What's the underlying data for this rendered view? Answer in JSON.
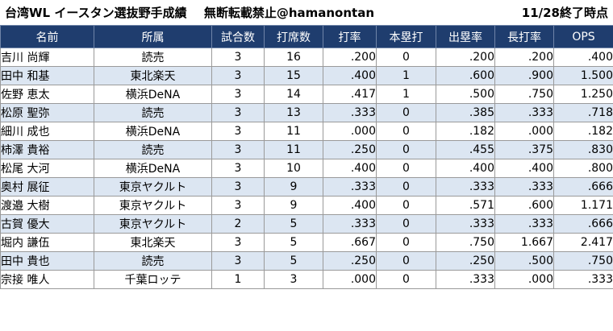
{
  "title": {
    "main": "台湾WL イースタン選抜野手成績",
    "notice": "無断転載禁止@hamanontan",
    "date": "11/28終了時点"
  },
  "columns": [
    "名前",
    "所属",
    "試合数",
    "打席数",
    "打率",
    "本塁打",
    "出塁率",
    "長打率",
    "OPS"
  ],
  "rows": [
    {
      "name": "吉川 尚輝",
      "team": "読売",
      "games": "3",
      "pa": "16",
      "avg": ".200",
      "hr": "0",
      "obp": ".200",
      "slg": ".200",
      "ops": ".400"
    },
    {
      "name": "田中 和基",
      "team": "東北楽天",
      "games": "3",
      "pa": "15",
      "avg": ".400",
      "hr": "1",
      "obp": ".600",
      "slg": ".900",
      "ops": "1.500"
    },
    {
      "name": "佐野 恵太",
      "team": "横浜DeNA",
      "games": "3",
      "pa": "14",
      "avg": ".417",
      "hr": "1",
      "obp": ".500",
      "slg": ".750",
      "ops": "1.250"
    },
    {
      "name": "松原 聖弥",
      "team": "読売",
      "games": "3",
      "pa": "13",
      "avg": ".333",
      "hr": "0",
      "obp": ".385",
      "slg": ".333",
      "ops": ".718"
    },
    {
      "name": "細川 成也",
      "team": "横浜DeNA",
      "games": "3",
      "pa": "11",
      "avg": ".000",
      "hr": "0",
      "obp": ".182",
      "slg": ".000",
      "ops": ".182"
    },
    {
      "name": "柿澤 貴裕",
      "team": "読売",
      "games": "3",
      "pa": "11",
      "avg": ".250",
      "hr": "0",
      "obp": ".455",
      "slg": ".375",
      "ops": ".830"
    },
    {
      "name": "松尾 大河",
      "team": "横浜DeNA",
      "games": "3",
      "pa": "10",
      "avg": ".400",
      "hr": "0",
      "obp": ".400",
      "slg": ".400",
      "ops": ".800"
    },
    {
      "name": "奥村 展征",
      "team": "東京ヤクルト",
      "games": "3",
      "pa": "9",
      "avg": ".333",
      "hr": "0",
      "obp": ".333",
      "slg": ".333",
      "ops": ".666"
    },
    {
      "name": "渡邉 大樹",
      "team": "東京ヤクルト",
      "games": "3",
      "pa": "9",
      "avg": ".400",
      "hr": "0",
      "obp": ".571",
      "slg": ".600",
      "ops": "1.171"
    },
    {
      "name": "古賀 優大",
      "team": "東京ヤクルト",
      "games": "2",
      "pa": "5",
      "avg": ".333",
      "hr": "0",
      "obp": ".333",
      "slg": ".333",
      "ops": ".666"
    },
    {
      "name": "堀内 謙伍",
      "team": "東北楽天",
      "games": "3",
      "pa": "5",
      "avg": ".667",
      "hr": "0",
      "obp": ".750",
      "slg": "1.667",
      "ops": "2.417"
    },
    {
      "name": "田中 貴也",
      "team": "読売",
      "games": "3",
      "pa": "5",
      "avg": ".250",
      "hr": "0",
      "obp": ".250",
      "slg": ".500",
      "ops": ".750"
    },
    {
      "name": "宗接 唯人",
      "team": "千葉ロッテ",
      "games": "1",
      "pa": "3",
      "avg": ".000",
      "hr": "0",
      "obp": ".333",
      "slg": ".000",
      "ops": ".333"
    }
  ],
  "colors": {
    "header_bg": "#1f3d6e",
    "stripe_bg": "#dce6f2"
  }
}
